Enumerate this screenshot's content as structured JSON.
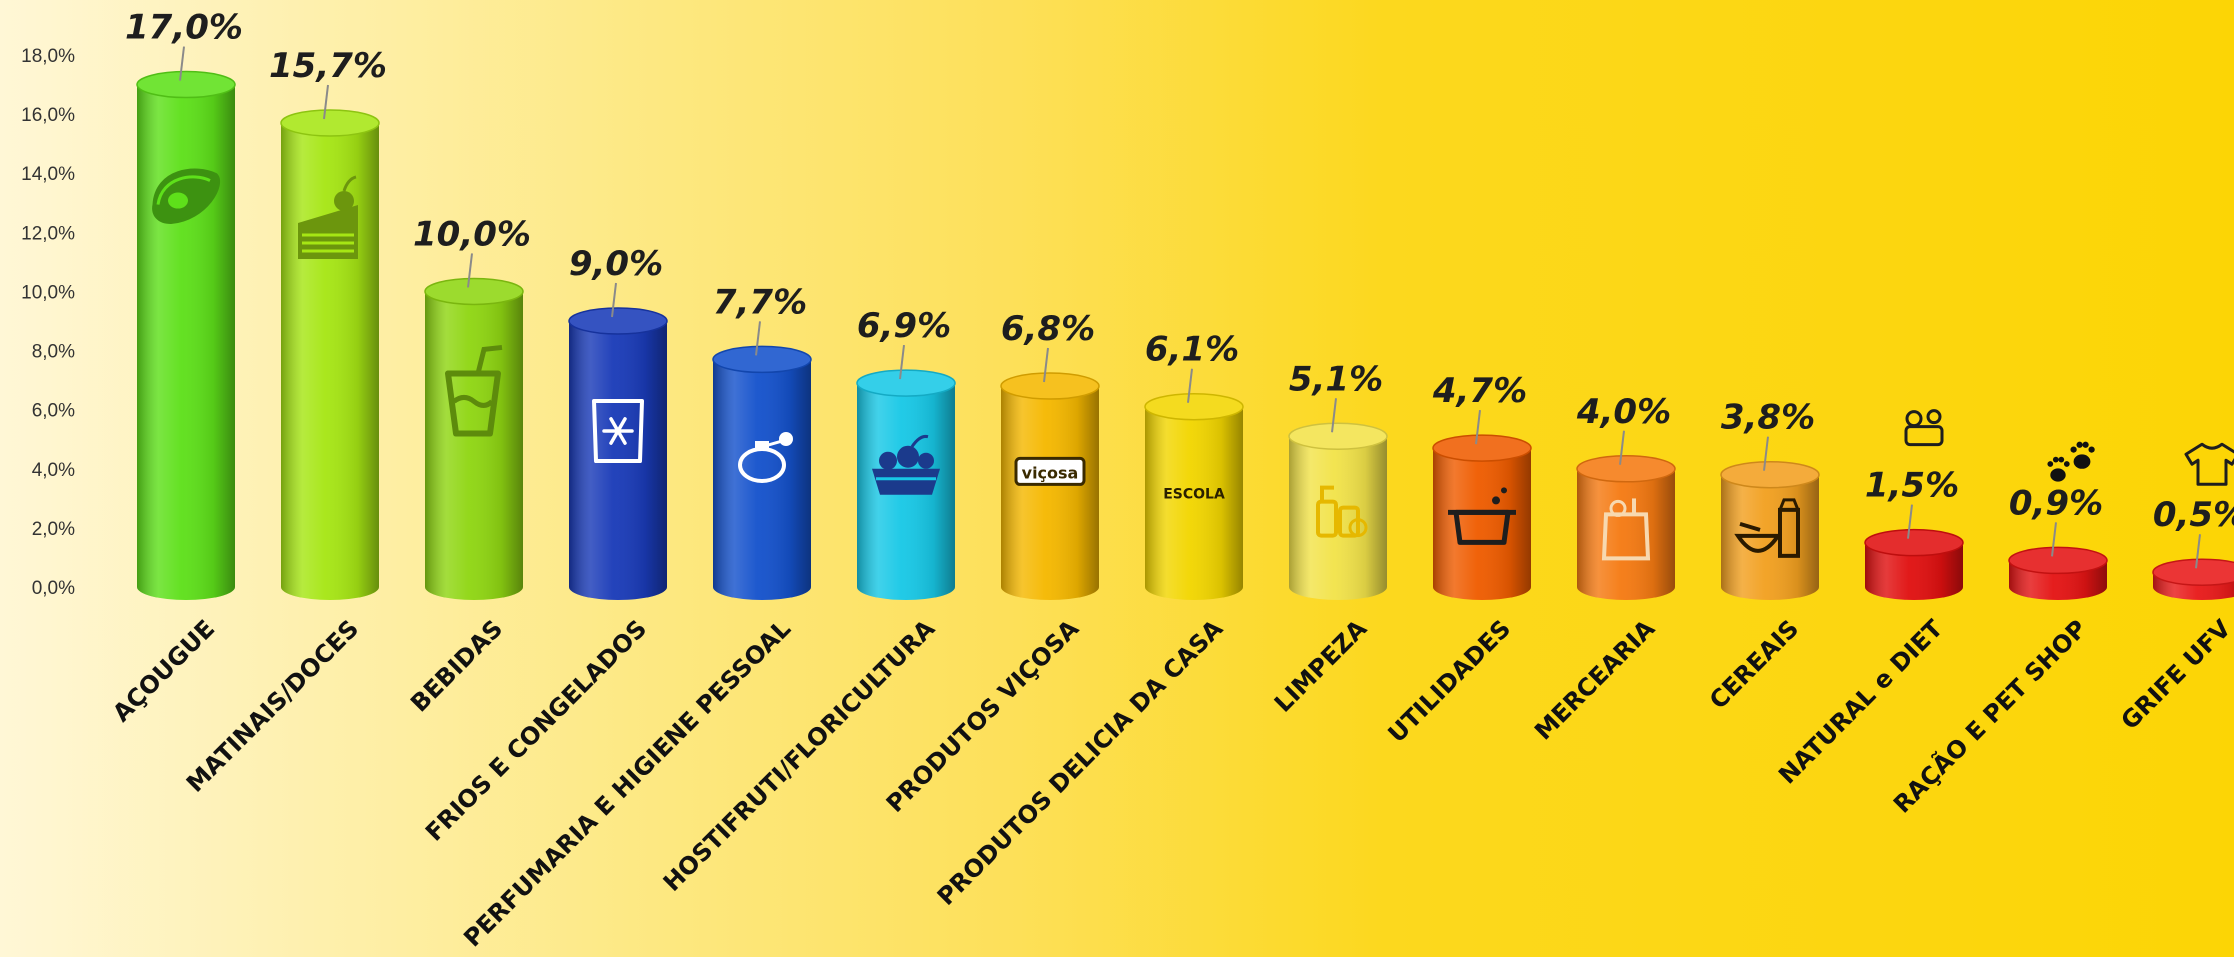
{
  "chart_data": {
    "type": "bar",
    "style": "3d-cylinder",
    "categories": [
      "AÇOUGUE",
      "MATINAIS/DOCES",
      "BEBIDAS",
      "FRIOS E CONGELADOS",
      "PERFUMARIA E HIGIENE PESSOAL",
      "HOSTIFRUTI/FLORICULTURA",
      "PRODUTOS VIÇOSA",
      "PRODUTOS DELICIA DA CASA",
      "LIMPEZA",
      "UTILIDADES",
      "MERCEARIA",
      "CEREAIS",
      "NATURAL e DIET",
      "RAÇÃO E PET SHOP",
      "GRIFE UFV"
    ],
    "values": [
      17.0,
      15.7,
      10.0,
      9.0,
      7.7,
      6.9,
      6.8,
      6.1,
      5.1,
      4.7,
      4.0,
      3.8,
      1.5,
      0.9,
      0.5
    ],
    "value_labels": [
      "17,0%",
      "15,7%",
      "10,0%",
      "9,0%",
      "7,7%",
      "6,9%",
      "6,8%",
      "6,1%",
      "5,1%",
      "4,7%",
      "4,0%",
      "3,8%",
      "1,5%",
      "0,9%",
      "0,5%"
    ],
    "colors": [
      "#5ee01a",
      "#a6e614",
      "#8fd612",
      "#1a3bb8",
      "#1552cc",
      "#18c8e6",
      "#f5b800",
      "#f2d600",
      "#f2e34a",
      "#ef5c00",
      "#f57a12",
      "#f2a020",
      "#e01010",
      "#e41414",
      "#e81a1a"
    ],
    "icons": [
      "steak-icon",
      "cake-slice-icon",
      "drink-cup-icon",
      "snowflake-pack-icon",
      "perfume-bottle-icon",
      "fruit-basket-icon",
      "vicosa-logo",
      "delicia-logo",
      "cleaning-products-icon",
      "cooking-pot-icon",
      "grocery-bag-icon",
      "cereal-bowl-icon",
      "scale-apple-icon",
      "paw-prints-icon",
      "shirt-icon"
    ],
    "logo_text": {
      "vicosa": "viçosa",
      "delicia": "ESCOLA"
    },
    "y_ticks": [
      "0,0%",
      "2,0%",
      "4,0%",
      "6,0%",
      "8,0%",
      "10,0%",
      "12,0%",
      "14,0%",
      "16,0%",
      "18,0%"
    ],
    "ylim": [
      0,
      18
    ],
    "title": "",
    "xlabel": "",
    "ylabel": "",
    "grid": false,
    "legend": "none"
  }
}
